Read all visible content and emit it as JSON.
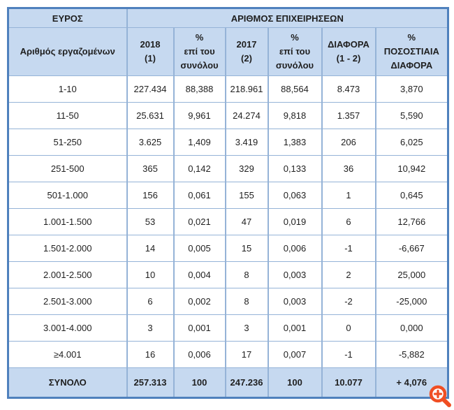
{
  "table": {
    "top_header": {
      "left": "ΕΥΡΟΣ",
      "right": "ΑΡΙΘΜΟΣ ΕΠΙΧΕΙΡΗΣΕΩΝ"
    },
    "columns": [
      "Αριθμός εργαζομένων",
      "2018\n(1)",
      "%\nεπί του\nσυνόλου",
      "2017\n(2)",
      "%\nεπί του\nσυνόλου",
      "ΔΙΑΦΟΡΑ\n(1 - 2)",
      "%\nΠΟΣΟΣΤΙΑΙΑ\nΔΙΑΦΟΡΑ"
    ],
    "rows": [
      [
        "1-10",
        "227.434",
        "88,388",
        "218.961",
        "88,564",
        "8.473",
        "3,870"
      ],
      [
        "11-50",
        "25.631",
        "9,961",
        "24.274",
        "9,818",
        "1.357",
        "5,590"
      ],
      [
        "51-250",
        "3.625",
        "1,409",
        "3.419",
        "1,383",
        "206",
        "6,025"
      ],
      [
        "251-500",
        "365",
        "0,142",
        "329",
        "0,133",
        "36",
        "10,942"
      ],
      [
        "501-1.000",
        "156",
        "0,061",
        "155",
        "0,063",
        "1",
        "0,645"
      ],
      [
        "1.001-1.500",
        "53",
        "0,021",
        "47",
        "0,019",
        "6",
        "12,766"
      ],
      [
        "1.501-2.000",
        "14",
        "0,005",
        "15",
        "0,006",
        "-1",
        "-6,667"
      ],
      [
        "2.001-2.500",
        "10",
        "0,004",
        "8",
        "0,003",
        "2",
        "25,000"
      ],
      [
        "2.501-3.000",
        "6",
        "0,002",
        "8",
        "0,003",
        "-2",
        "-25,000"
      ],
      [
        "3.001-4.000",
        "3",
        "0,001",
        "3",
        "0,001",
        "0",
        "0,000"
      ],
      [
        "≥4.001",
        "16",
        "0,006",
        "17",
        "0,007",
        "-1",
        "-5,882"
      ]
    ],
    "total_row": [
      "ΣΥΝΟΛΟ",
      "257.313",
      "100",
      "247.236",
      "100",
      "10.077",
      "+ 4,076"
    ]
  },
  "icons": {
    "zoom": "zoom-in-magnifier"
  },
  "colors": {
    "header_fill": "#c6d9f0",
    "outer_border": "#4f81bd",
    "grid_border": "#95b3d7",
    "text": "#1f1f1f",
    "zoom_icon": "#f04e23"
  }
}
